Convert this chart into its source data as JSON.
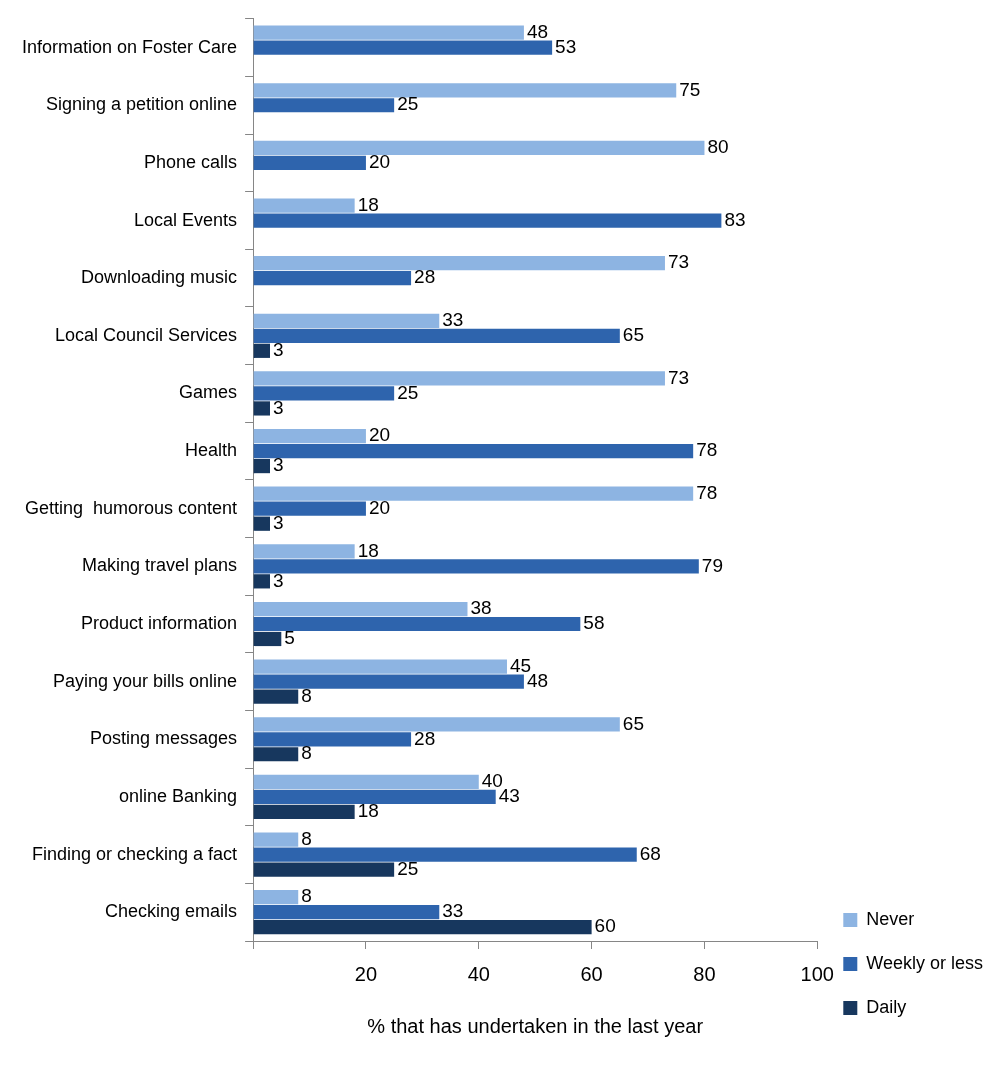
{
  "chart_data": {
    "type": "bar",
    "orientation": "horizontal",
    "xlabel": "% that has undertaken in the last year",
    "categories": [
      "Information on Foster Care",
      "Signing a petition online",
      "Phone calls",
      "Local Events",
      "Downloading music",
      "Local Council Services",
      "Games",
      "Health",
      "Getting  humorous content",
      "Making travel plans",
      "Product information",
      "Paying your bills online",
      "Posting messages",
      "online Banking",
      "Finding or checking a fact",
      "Checking emails"
    ],
    "series": [
      {
        "name": "Never",
        "color": "#8db4e2",
        "values": [
          48,
          75,
          80,
          18,
          73,
          33,
          73,
          20,
          78,
          18,
          38,
          45,
          65,
          40,
          8,
          8
        ]
      },
      {
        "name": "Weekly or less",
        "color": "#2e64ad",
        "values": [
          53,
          25,
          20,
          83,
          28,
          65,
          25,
          78,
          20,
          79,
          58,
          48,
          28,
          43,
          68,
          33
        ]
      },
      {
        "name": "Daily",
        "color": "#17375e",
        "values": [
          null,
          null,
          null,
          null,
          null,
          3,
          3,
          3,
          3,
          3,
          5,
          8,
          8,
          18,
          25,
          60
        ]
      }
    ],
    "xlim": [
      0,
      100
    ],
    "xticks": [
      {
        "value": 0,
        "label": null
      },
      20,
      40,
      60,
      80,
      100
    ],
    "data_labels": true,
    "grid": false,
    "legend": "right"
  }
}
